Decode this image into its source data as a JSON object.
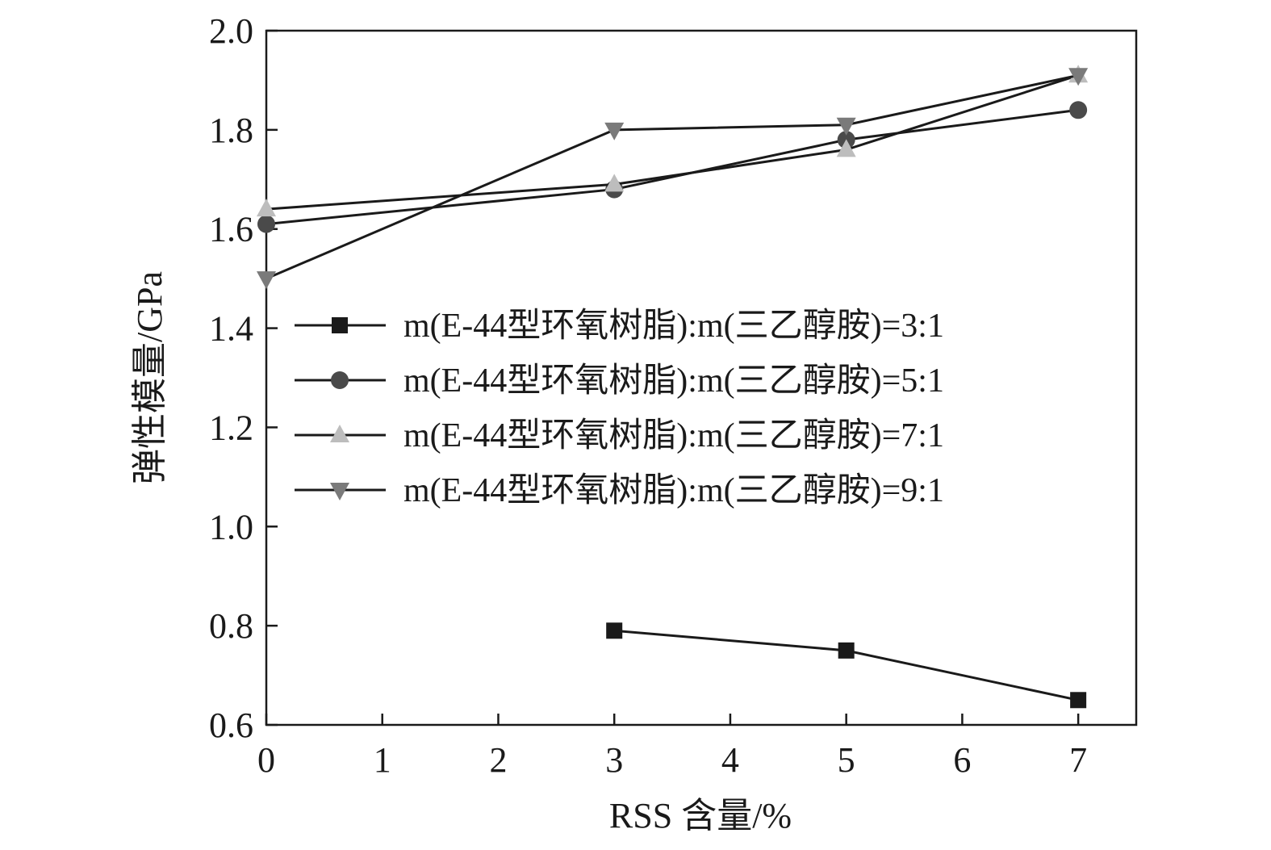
{
  "chart_data": {
    "type": "line",
    "xlabel": "RSS 含量/%",
    "ylabel": "弹性模量/GPa",
    "xlim": [
      0,
      7.5
    ],
    "ylim": [
      0.6,
      2.0
    ],
    "xticks": [
      0,
      1,
      2,
      3,
      4,
      5,
      6,
      7
    ],
    "yticks": [
      0.6,
      0.8,
      1.0,
      1.2,
      1.4,
      1.6,
      1.8,
      2.0
    ],
    "xtick_labels": [
      "0",
      "1",
      "2",
      "3",
      "4",
      "5",
      "6",
      "7"
    ],
    "ytick_labels": [
      "0.6",
      "0.8",
      "1.0",
      "1.2",
      "1.4",
      "1.6",
      "1.8",
      "2.0"
    ],
    "legend_position": "center-right",
    "grid": false,
    "series": [
      {
        "name": "m(E-44型环氧树脂):m(三乙醇胺)=3:1",
        "marker": "square",
        "color": "#1a1a1a",
        "x": [
          3,
          5,
          7
        ],
        "y": [
          0.79,
          0.75,
          0.65
        ]
      },
      {
        "name": "m(E-44型环氧树脂):m(三乙醇胺)=5:1",
        "marker": "circle",
        "color": "#4a4a4a",
        "x": [
          0,
          3,
          5,
          7
        ],
        "y": [
          1.61,
          1.68,
          1.78,
          1.84
        ]
      },
      {
        "name": "m(E-44型环氧树脂):m(三乙醇胺)=7:1",
        "marker": "triangle-up",
        "color": "#bdbdbd",
        "x": [
          0,
          3,
          5,
          7
        ],
        "y": [
          1.64,
          1.69,
          1.76,
          1.91
        ]
      },
      {
        "name": "m(E-44型环氧树脂):m(三乙醇胺)=9:1",
        "marker": "triangle-down",
        "color": "#7a7a7a",
        "x": [
          0,
          3,
          5,
          7
        ],
        "y": [
          1.5,
          1.8,
          1.81,
          1.91
        ]
      }
    ]
  }
}
